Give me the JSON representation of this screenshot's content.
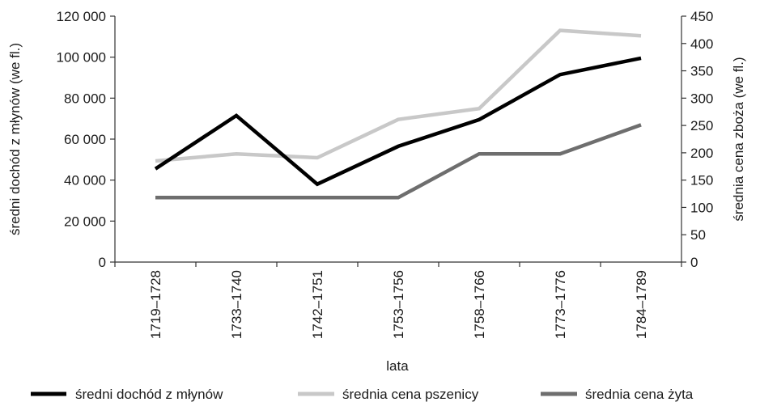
{
  "chart_data": {
    "type": "line",
    "categories": [
      "1719–1728",
      "1733–1740",
      "1742–1751",
      "1753–1756",
      "1758–1766",
      "1773–1776",
      "1784–1789"
    ],
    "xlabel": "lata",
    "ylabel_left": "średni dochód z młynów (we fl.)",
    "ylabel_right": "średnia cena zboża (we fl.)",
    "ylim_left": [
      0,
      120000
    ],
    "yticks_left": [
      "0",
      "20 000",
      "40 000",
      "60 000",
      "80 000",
      "100 000",
      "120 000"
    ],
    "ylim_right": [
      0,
      450
    ],
    "yticks_right": [
      "0",
      "50",
      "100",
      "150",
      "200",
      "250",
      "300",
      "350",
      "400",
      "450"
    ],
    "grid": false,
    "legend_position": "bottom",
    "series": [
      {
        "name": "średni dochód z młynów",
        "axis": "left",
        "color": "#000000",
        "values": [
          45500,
          71500,
          38000,
          56500,
          69500,
          91500,
          99500
        ]
      },
      {
        "name": "średnia cena pszenicy",
        "axis": "right",
        "color": "#c8c8c8",
        "values": [
          185,
          198,
          191,
          261,
          281,
          424,
          414
        ]
      },
      {
        "name": "średnia cena żyta",
        "axis": "right",
        "color": "#6e6e6e",
        "values": [
          118,
          118,
          118,
          118,
          198,
          198,
          251
        ]
      }
    ]
  }
}
